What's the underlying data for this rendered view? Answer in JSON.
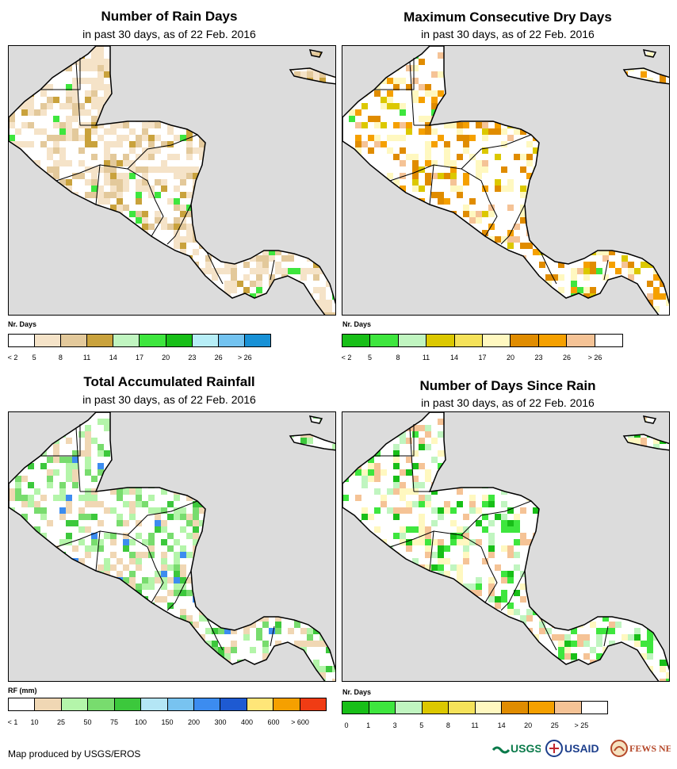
{
  "chart_data": [
    {
      "type": "heatmap",
      "id": "rain-days",
      "title": "Number of Rain Days",
      "subtitle": "in past 30 days, as of 22 Feb. 2016",
      "legend_title": "Nr. Days",
      "legend_labels": [
        "< 2",
        "5",
        "8",
        "11",
        "14",
        "17",
        "20",
        "23",
        "26",
        "> 26"
      ],
      "legend_colors": [
        "#ffffff",
        "#f5e3c8",
        "#e3c99b",
        "#c9a23c",
        "#c0f5c0",
        "#3ee63e",
        "#18bf18",
        "#b7eef7",
        "#73c3f0",
        "#1891d6"
      ]
    },
    {
      "type": "heatmap",
      "id": "dry-days",
      "title": "Maximum Consecutive Dry Days",
      "subtitle": "in past 30 days, as of 22 Feb. 2016",
      "legend_title": "Nr. Days",
      "legend_labels": [
        "< 2",
        "5",
        "8",
        "11",
        "14",
        "17",
        "20",
        "23",
        "26",
        "> 26"
      ],
      "legend_colors": [
        "#18bf18",
        "#3ee63e",
        "#c0f5c0",
        "#dcc800",
        "#f5e25a",
        "#fff8c0",
        "#e08c00",
        "#f5a000",
        "#f5c396",
        "#ffffff"
      ]
    },
    {
      "type": "heatmap",
      "id": "total-rainfall",
      "title": "Total Accumulated Rainfall",
      "subtitle": "in past 30 days, as of 22 Feb. 2016",
      "legend_title": "RF (mm)",
      "legend_labels": [
        "< 1",
        "10",
        "25",
        "50",
        "75",
        "100",
        "150",
        "200",
        "300",
        "400",
        "600",
        "> 600"
      ],
      "legend_colors": [
        "#ffffff",
        "#f0d7b4",
        "#b4f5aa",
        "#78dc6e",
        "#3cc83c",
        "#b4e6f5",
        "#78c3f0",
        "#3c8cf0",
        "#1e5ad2",
        "#ffe678",
        "#f5a000",
        "#f03c14"
      ]
    },
    {
      "type": "heatmap",
      "id": "days-since-rain",
      "title": "Number of Days Since Rain",
      "subtitle": "in past 30 days, as of 22 Feb. 2016",
      "legend_title": "Nr. Days",
      "legend_labels": [
        "0",
        "1",
        "3",
        "5",
        "8",
        "11",
        "14",
        "20",
        "25",
        "> 25"
      ],
      "legend_colors": [
        "#18bf18",
        "#3ee63e",
        "#c0f5c0",
        "#dcc800",
        "#f5e25a",
        "#fff8c0",
        "#e08c00",
        "#f5a000",
        "#f5c396",
        "#ffffff"
      ]
    }
  ],
  "footer": {
    "credit": "Map produced by USGS/EROS"
  },
  "logos": {
    "usgs": "USGS",
    "usaid": "USAID",
    "fews": "FEWS NET"
  }
}
